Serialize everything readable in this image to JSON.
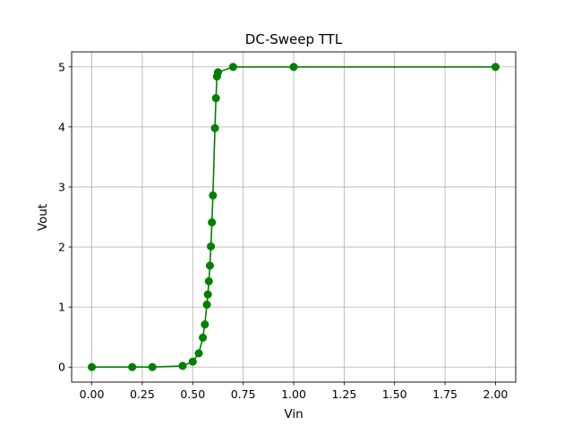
{
  "chart_data": {
    "type": "line",
    "title": "DC-Sweep TTL",
    "xlabel": "Vin",
    "ylabel": "Vout",
    "xlim": [
      -0.1,
      2.1
    ],
    "ylim": [
      -0.25,
      5.25
    ],
    "xticks": [
      0.0,
      0.25,
      0.5,
      0.75,
      1.0,
      1.25,
      1.5,
      1.75,
      2.0
    ],
    "xtick_labels": [
      "0.00",
      "0.25",
      "0.50",
      "0.75",
      "1.00",
      "1.25",
      "1.50",
      "1.75",
      "2.00"
    ],
    "yticks": [
      0,
      1,
      2,
      3,
      4,
      5
    ],
    "ytick_labels": [
      "0",
      "1",
      "2",
      "3",
      "4",
      "5"
    ],
    "grid": true,
    "legend": false,
    "series": [
      {
        "color": "#008000",
        "marker": "circle",
        "x": [
          0.0,
          0.2,
          0.3,
          0.45,
          0.5,
          0.53,
          0.55,
          0.56,
          0.57,
          0.575,
          0.58,
          0.585,
          0.59,
          0.595,
          0.6,
          0.61,
          0.615,
          0.62,
          0.625,
          0.7,
          1.0,
          2.0
        ],
        "y": [
          0.0,
          0.0,
          0.0,
          0.02,
          0.09,
          0.23,
          0.49,
          0.71,
          1.04,
          1.21,
          1.43,
          1.69,
          2.01,
          2.41,
          2.86,
          3.98,
          4.48,
          4.84,
          4.91,
          5.0,
          5.0,
          5.0
        ]
      }
    ]
  }
}
